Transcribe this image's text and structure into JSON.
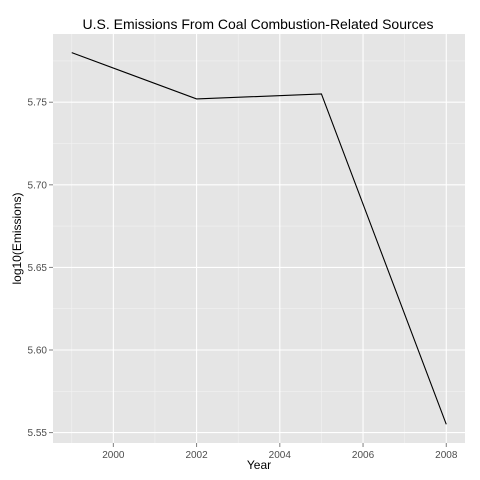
{
  "chart_data": {
    "type": "line",
    "title": "U.S. Emissions From Coal Combustion-Related Sources",
    "xlabel": "Year",
    "ylabel": "log10(Emissions)",
    "x": [
      1999,
      2002,
      2005,
      2008
    ],
    "series": [
      {
        "values": [
          5.78,
          5.752,
          5.755,
          5.555
        ]
      }
    ],
    "xlim": [
      1998.55,
      2008.45
    ],
    "ylim": [
      5.5437,
      5.7913
    ],
    "x_ticks": [
      2000,
      2002,
      2004,
      2006,
      2008
    ],
    "x_tick_labels": [
      "2000",
      "2002",
      "2004",
      "2006",
      "2008"
    ],
    "y_ticks": [
      5.55,
      5.6,
      5.65,
      5.7,
      5.75
    ],
    "y_tick_labels": [
      "5.55",
      "5.60",
      "5.65",
      "5.70",
      "5.75"
    ],
    "grid": true,
    "legend": "none",
    "colors": {
      "panel_background": "#e5e5e5",
      "grid_major": "#ffffff",
      "grid_minor": "#f2f2f2",
      "line": "#000000",
      "tick_label": "#4d4d4d",
      "tick_mark": "#7f7f7f"
    }
  }
}
